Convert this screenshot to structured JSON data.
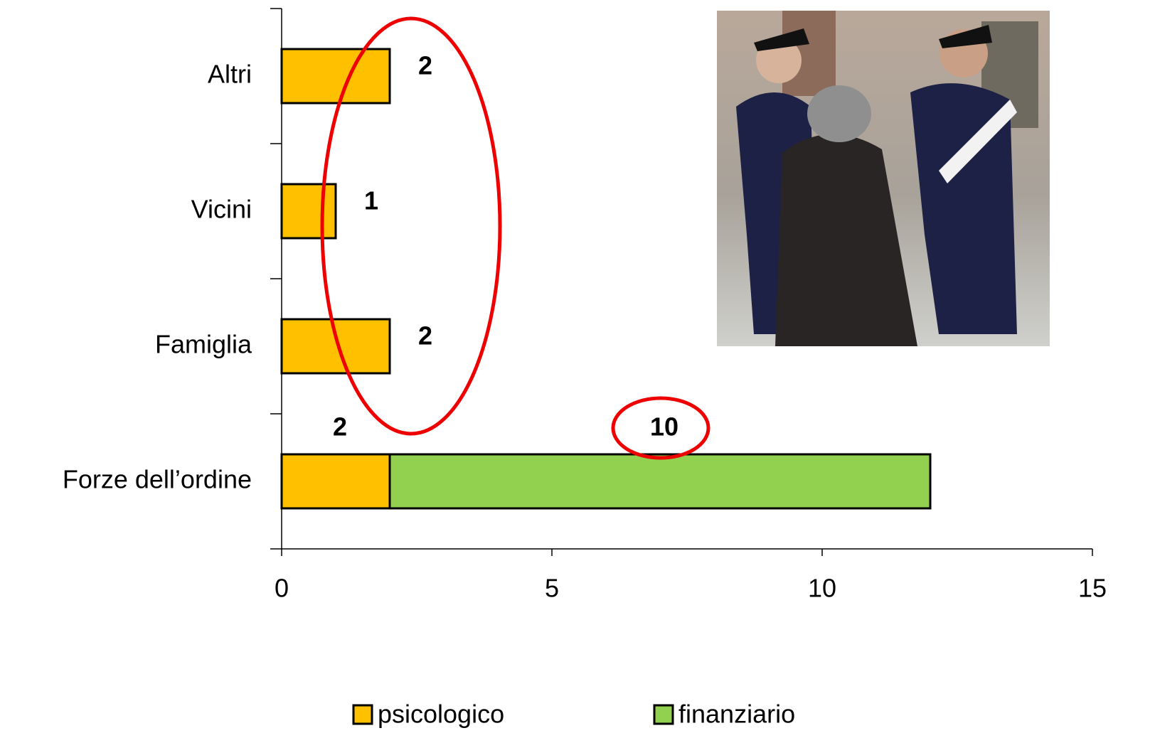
{
  "chart_data": {
    "type": "stacked-bar-horizontal",
    "categories": [
      "Forze dell’ordine",
      "Famiglia",
      "Vicini",
      "Altri"
    ],
    "series": [
      {
        "name": "psicologico",
        "color": "#FFC000",
        "values": [
          2,
          2,
          1,
          2
        ]
      },
      {
        "name": "finanziario",
        "color": "#92D050",
        "values": [
          10,
          null,
          null,
          null
        ]
      }
    ],
    "xlim": [
      0,
      15
    ],
    "xticks": [
      0,
      5,
      10,
      15
    ],
    "legend": "bottom"
  }
}
